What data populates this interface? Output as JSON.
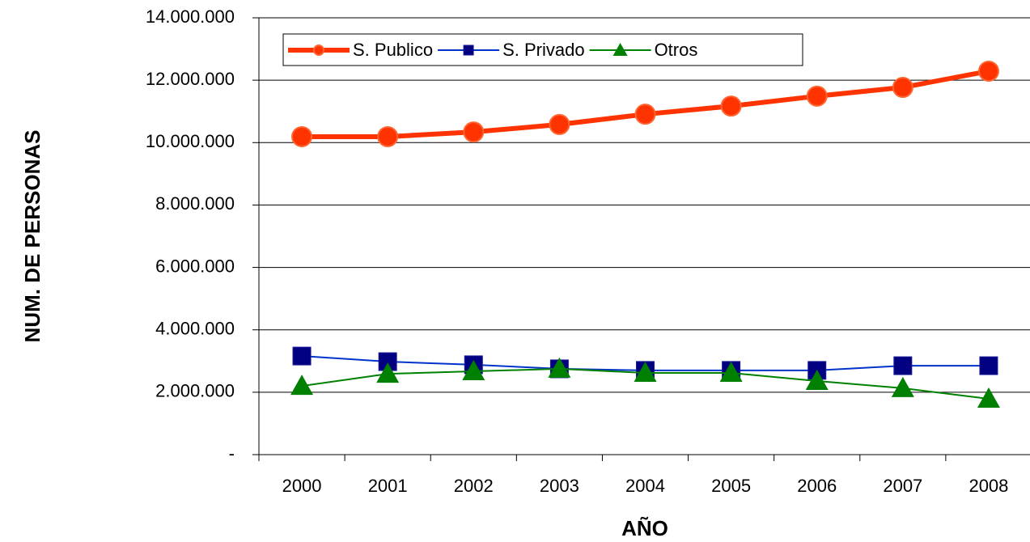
{
  "chart_data": {
    "type": "line",
    "y_label": "NUM. DE PERSONAS",
    "x_label": "AÑO",
    "categories": [
      "2000",
      "2001",
      "2002",
      "2003",
      "2004",
      "2005",
      "2006",
      "2007",
      "2008"
    ],
    "series": [
      {
        "name": "S. Publico",
        "color": "#ff3300",
        "marker": "circle",
        "values": [
          10190000,
          10190000,
          10340000,
          10580000,
          10910000,
          11170000,
          11490000,
          11770000,
          12290000
        ]
      },
      {
        "name": "S. Privado",
        "color": "#0033cc",
        "marker": "square",
        "values": [
          3160000,
          2980000,
          2880000,
          2750000,
          2700000,
          2700000,
          2700000,
          2850000,
          2850000
        ]
      },
      {
        "name": "Otros",
        "color": "#008000",
        "marker": "triangle",
        "values": [
          2200000,
          2590000,
          2670000,
          2750000,
          2620000,
          2620000,
          2360000,
          2130000,
          1790000
        ]
      }
    ],
    "ylim": [
      0,
      14000000
    ],
    "yticks": [
      {
        "value": 0,
        "label": "-"
      },
      {
        "value": 2000000,
        "label": "2.000.000"
      },
      {
        "value": 4000000,
        "label": "4.000.000"
      },
      {
        "value": 6000000,
        "label": "6.000.000"
      },
      {
        "value": 8000000,
        "label": "8.000.000"
      },
      {
        "value": 10000000,
        "label": "10.000.000"
      },
      {
        "value": 12000000,
        "label": "12.000.000"
      },
      {
        "value": 14000000,
        "label": "14.000.000"
      }
    ],
    "grid": true,
    "legend": "top-left"
  }
}
